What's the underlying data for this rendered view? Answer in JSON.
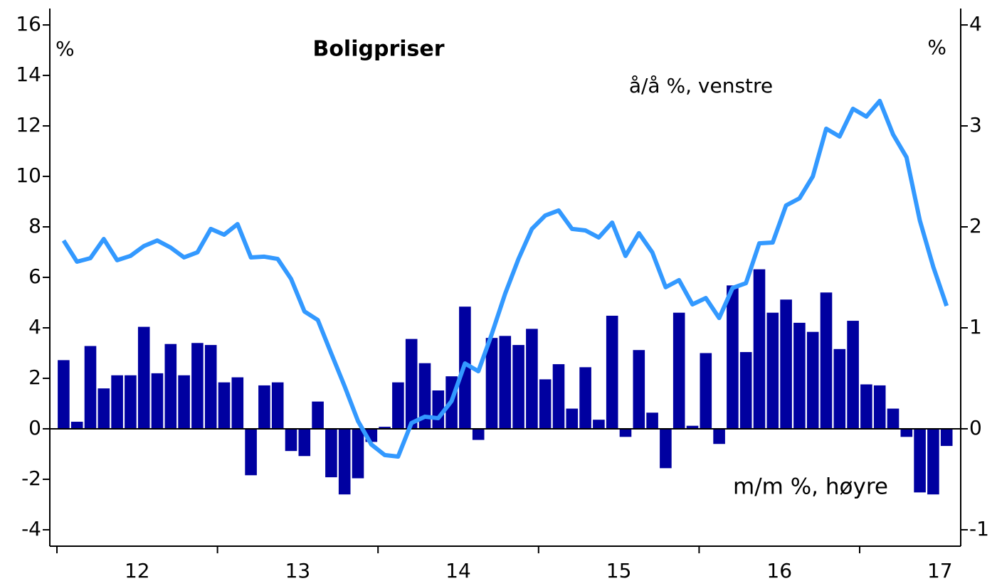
{
  "chart_data": {
    "type": "bar-line",
    "title": "Boligpriser",
    "y_unit_label": "%",
    "y2_unit_label": "%",
    "categories": [
      null,
      null,
      null,
      null,
      null,
      null,
      null,
      null,
      null,
      null,
      null,
      null,
      null,
      null,
      null,
      null,
      null,
      null,
      null,
      null,
      null,
      null,
      null,
      null,
      null,
      null,
      null,
      null,
      null,
      null,
      null,
      null,
      null,
      null,
      null,
      null,
      null,
      null,
      null,
      null,
      null,
      null,
      null,
      null,
      null,
      null,
      null,
      null,
      null,
      null,
      null,
      null,
      null,
      null,
      null,
      null,
      null,
      null,
      null,
      null,
      null,
      null,
      null,
      null,
      null,
      null,
      null
    ],
    "x_labels": [
      "12",
      "13",
      "14",
      "15",
      "16",
      "17"
    ],
    "ylim": [
      -4.65,
      16.65
    ],
    "yticks": [
      -4,
      -2,
      0,
      2,
      4,
      6,
      8,
      10,
      12,
      14,
      16
    ],
    "y2lim": [
      -1.1625,
      4.1625
    ],
    "y2ticks": [
      -1,
      0,
      1,
      2,
      3,
      4
    ],
    "series": [
      {
        "name": "m/m %, høyre",
        "type": "bar",
        "axis": "y2",
        "color": "#0000a0",
        "values": [
          0.68,
          0.07,
          0.82,
          0.4,
          0.53,
          0.53,
          1.01,
          0.55,
          0.84,
          0.53,
          0.85,
          0.83,
          0.46,
          0.51,
          -0.46,
          0.43,
          0.46,
          -0.22,
          -0.27,
          0.27,
          -0.48,
          -0.65,
          -0.49,
          -0.13,
          0.02,
          0.46,
          0.89,
          0.65,
          0.38,
          0.52,
          1.21,
          -0.11,
          0.9,
          0.92,
          0.83,
          0.99,
          0.49,
          0.64,
          0.2,
          0.61,
          0.09,
          1.12,
          -0.08,
          0.78,
          0.16,
          -0.39,
          1.15,
          0.03,
          0.75,
          -0.15,
          1.42,
          0.76,
          1.58,
          1.15,
          1.28,
          1.05,
          0.96,
          1.35,
          0.79,
          1.07,
          0.44,
          0.43,
          0.2,
          -0.08,
          -0.63,
          -0.65,
          -0.17
        ]
      },
      {
        "name": "å/å %, venstre",
        "type": "line",
        "axis": "y",
        "color": "#3399ff",
        "values": [
          7.46,
          6.62,
          6.76,
          7.52,
          6.68,
          6.85,
          7.24,
          7.46,
          7.18,
          6.79,
          6.99,
          7.92,
          7.69,
          8.11,
          6.79,
          6.82,
          6.73,
          5.94,
          4.65,
          4.31,
          2.99,
          1.69,
          0.31,
          -0.62,
          -1.04,
          -1.1,
          0.23,
          0.48,
          0.42,
          1.1,
          2.59,
          2.28,
          3.75,
          5.35,
          6.73,
          7.92,
          8.45,
          8.65,
          7.92,
          7.86,
          7.58,
          8.17,
          6.85,
          7.75,
          6.99,
          5.61,
          5.89,
          4.93,
          5.18,
          4.39,
          5.58,
          5.77,
          7.35,
          7.38,
          8.85,
          9.13,
          10.0,
          11.89,
          11.58,
          12.68,
          12.37,
          12.99,
          11.66,
          10.76,
          8.25,
          6.42,
          4.87
        ]
      }
    ]
  }
}
